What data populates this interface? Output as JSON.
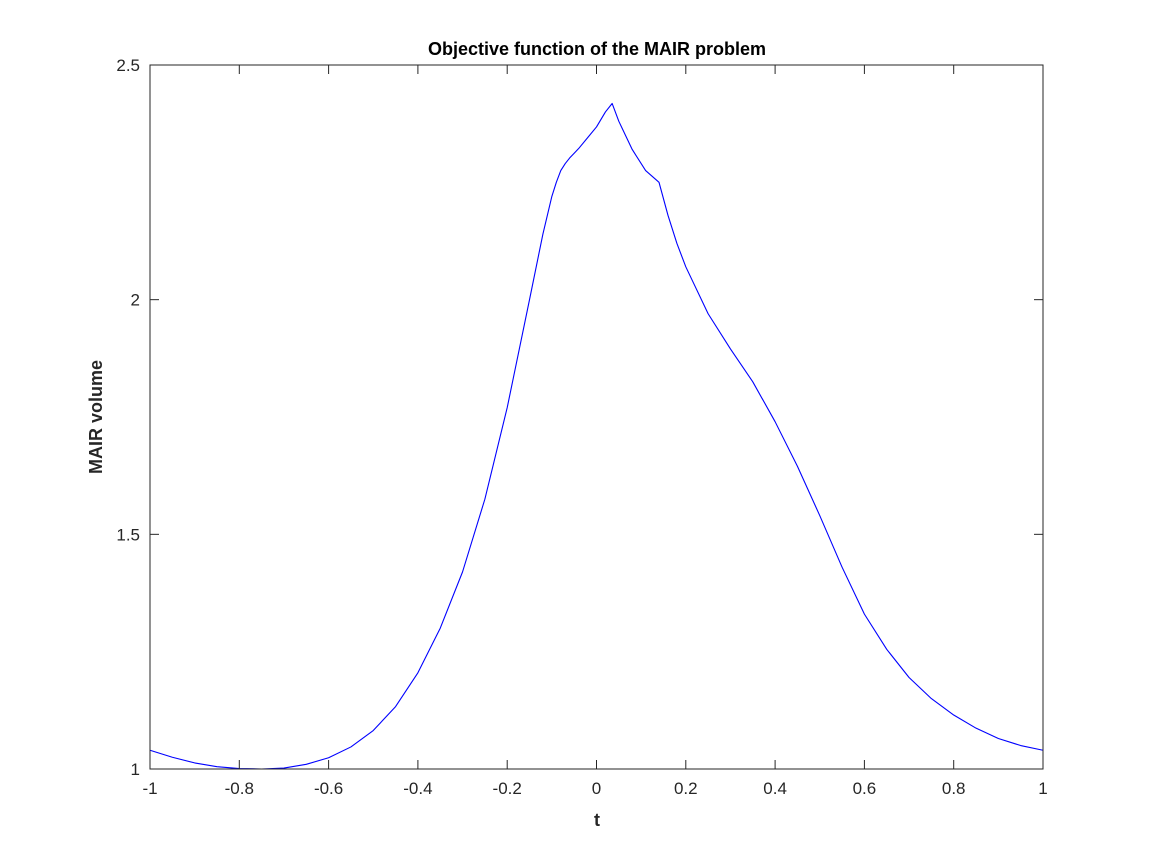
{
  "chart_data": {
    "type": "line",
    "title": "Objective function of the MAIR problem",
    "xlabel": "t",
    "ylabel": "MAIR volume",
    "xlim": [
      -1,
      1
    ],
    "ylim": [
      1,
      2.5
    ],
    "xticks": [
      -1,
      -0.8,
      -0.6,
      -0.4,
      -0.2,
      0,
      0.2,
      0.4,
      0.6,
      0.8,
      1
    ],
    "xtick_labels": [
      "-1",
      "-0.8",
      "-0.6",
      "-0.4",
      "-0.2",
      "0",
      "0.2",
      "0.4",
      "0.6",
      "0.8",
      "1"
    ],
    "yticks": [
      1,
      1.5,
      2,
      2.5
    ],
    "ytick_labels": [
      "1",
      "1.5",
      "2",
      "2.5"
    ],
    "grid": false,
    "box": true,
    "colors": {
      "line": "#0000ff",
      "axes": "#262626",
      "background": "#ffffff"
    },
    "series": [
      {
        "color": "#0000ff",
        "x": [
          -1,
          -0.95,
          -0.9,
          -0.85,
          -0.8,
          -0.75,
          -0.7,
          -0.65,
          -0.6,
          -0.55,
          -0.5,
          -0.45,
          -0.4,
          -0.35,
          -0.3,
          -0.25,
          -0.2,
          -0.15,
          -0.12,
          -0.1,
          -0.09,
          -0.08,
          -0.07,
          -0.06,
          -0.05,
          -0.04,
          -0.02,
          0,
          0.02,
          0.035,
          0.05,
          0.08,
          0.11,
          0.14,
          0.16,
          0.18,
          0.2,
          0.25,
          0.3,
          0.35,
          0.4,
          0.45,
          0.5,
          0.55,
          0.6,
          0.65,
          0.7,
          0.75,
          0.8,
          0.85,
          0.9,
          0.95,
          1
        ],
        "y": [
          1.04,
          1.025,
          1.013,
          1.005,
          1.001,
          1.0,
          1.002,
          1.01,
          1.024,
          1.047,
          1.082,
          1.133,
          1.205,
          1.3,
          1.42,
          1.575,
          1.77,
          2.0,
          2.14,
          2.22,
          2.25,
          2.275,
          2.29,
          2.302,
          2.312,
          2.322,
          2.345,
          2.368,
          2.4,
          2.418,
          2.38,
          2.32,
          2.275,
          2.25,
          2.18,
          2.12,
          2.07,
          1.97,
          1.895,
          1.825,
          1.74,
          1.645,
          1.54,
          1.43,
          1.33,
          1.255,
          1.195,
          1.15,
          1.115,
          1.087,
          1.065,
          1.05,
          1.04
        ]
      }
    ]
  }
}
